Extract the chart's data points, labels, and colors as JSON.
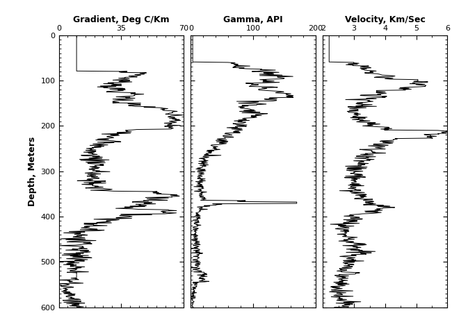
{
  "gradient_xlim": [
    0,
    70
  ],
  "gradient_xticks": [
    0,
    35,
    70
  ],
  "gamma_xlim": [
    0,
    200
  ],
  "gamma_xticks": [
    0,
    100,
    200
  ],
  "velocity_xlim": [
    2,
    6
  ],
  "velocity_xticks": [
    2,
    3,
    4,
    5,
    6
  ],
  "ylim": [
    600,
    0
  ],
  "yticks": [
    0,
    100,
    200,
    300,
    400,
    500,
    600
  ],
  "ylabel": "Depth, Meters",
  "title1": "Gradient, Deg C/Km",
  "title2": "Gamma, API",
  "title3": "Velocity, Km/Sec",
  "bg_color": "#ffffff",
  "line_color": "#000000",
  "linewidth": 0.7
}
